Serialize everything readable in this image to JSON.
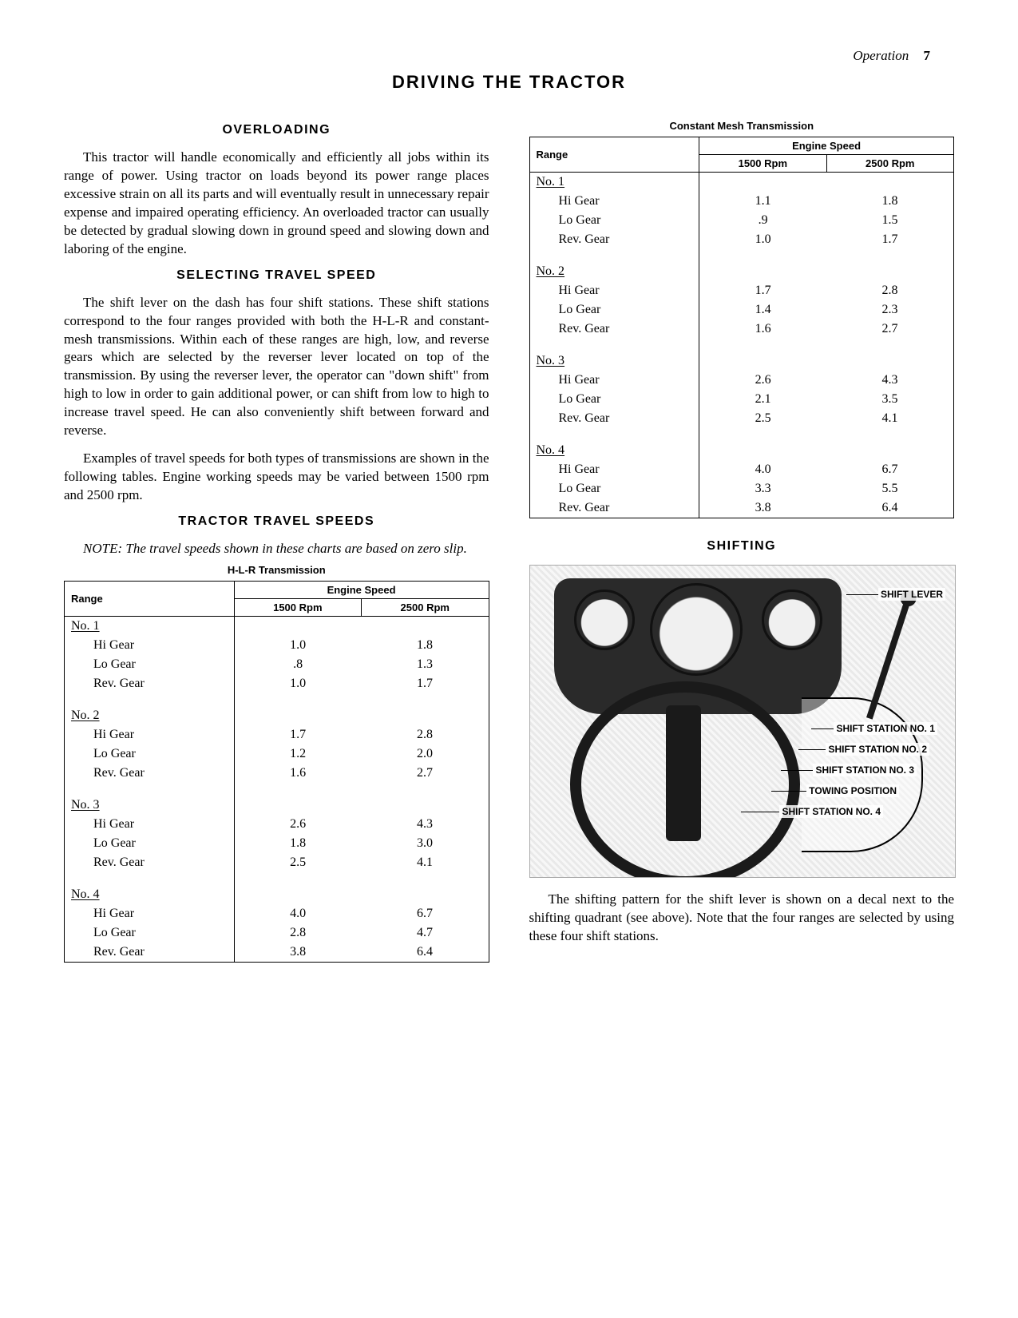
{
  "header": {
    "section": "Operation",
    "page_number": "7"
  },
  "title": "DRIVING THE TRACTOR",
  "left": {
    "overloading": {
      "heading": "OVERLOADING",
      "p1": "This tractor will handle economically and efficiently all jobs within its range of power. Using tractor on loads beyond its power range places excessive strain on all its parts and will eventually result in unnecessary repair expense and impaired operating efficiency. An overloaded tractor can usually be detected by gradual slowing down in ground speed and slowing down and laboring of the engine."
    },
    "selecting": {
      "heading": "SELECTING TRAVEL SPEED",
      "p1": "The shift lever on the dash has four shift stations. These shift stations correspond to the four ranges provided with both the H-L-R and constant-mesh transmissions. Within each of these ranges are high, low, and reverse gears which are selected by the reverser lever located on top of the transmission. By using the reverser lever, the operator can \"down shift\" from high to low in order to gain additional power, or can shift from low to high to increase travel speed. He can also conveniently shift between forward and reverse.",
      "p2": "Examples of travel speeds for both types of transmissions are shown in the following tables. Engine working speeds may be varied between 1500 rpm and 2500 rpm."
    },
    "speeds_heading": "TRACTOR TRAVEL SPEEDS",
    "note": "NOTE: The travel speeds shown in these charts are based on zero slip.",
    "table_hlr": {
      "caption": "H-L-R Transmission",
      "col_range": "Range",
      "col_engine": "Engine Speed",
      "col_1500": "1500 Rpm",
      "col_2500": "2500 Rpm",
      "ranges": [
        {
          "label": "No. 1",
          "rows": [
            {
              "gear": "Hi Gear",
              "v1500": "1.0",
              "v2500": "1.8"
            },
            {
              "gear": "Lo Gear",
              "v1500": ".8",
              "v2500": "1.3"
            },
            {
              "gear": "Rev. Gear",
              "v1500": "1.0",
              "v2500": "1.7"
            }
          ]
        },
        {
          "label": "No. 2",
          "rows": [
            {
              "gear": "Hi Gear",
              "v1500": "1.7",
              "v2500": "2.8"
            },
            {
              "gear": "Lo Gear",
              "v1500": "1.2",
              "v2500": "2.0"
            },
            {
              "gear": "Rev. Gear",
              "v1500": "1.6",
              "v2500": "2.7"
            }
          ]
        },
        {
          "label": "No. 3",
          "rows": [
            {
              "gear": "Hi Gear",
              "v1500": "2.6",
              "v2500": "4.3"
            },
            {
              "gear": "Lo Gear",
              "v1500": "1.8",
              "v2500": "3.0"
            },
            {
              "gear": "Rev. Gear",
              "v1500": "2.5",
              "v2500": "4.1"
            }
          ]
        },
        {
          "label": "No. 4",
          "rows": [
            {
              "gear": "Hi Gear",
              "v1500": "4.0",
              "v2500": "6.7"
            },
            {
              "gear": "Lo Gear",
              "v1500": "2.8",
              "v2500": "4.7"
            },
            {
              "gear": "Rev. Gear",
              "v1500": "3.8",
              "v2500": "6.4"
            }
          ]
        }
      ]
    }
  },
  "right": {
    "table_cm": {
      "caption": "Constant Mesh Transmission",
      "col_range": "Range",
      "col_engine": "Engine Speed",
      "col_1500": "1500 Rpm",
      "col_2500": "2500 Rpm",
      "ranges": [
        {
          "label": "No. 1",
          "rows": [
            {
              "gear": "Hi Gear",
              "v1500": "1.1",
              "v2500": "1.8"
            },
            {
              "gear": "Lo Gear",
              "v1500": ".9",
              "v2500": "1.5"
            },
            {
              "gear": "Rev. Gear",
              "v1500": "1.0",
              "v2500": "1.7"
            }
          ]
        },
        {
          "label": "No. 2",
          "rows": [
            {
              "gear": "Hi Gear",
              "v1500": "1.7",
              "v2500": "2.8"
            },
            {
              "gear": "Lo Gear",
              "v1500": "1.4",
              "v2500": "2.3"
            },
            {
              "gear": "Rev. Gear",
              "v1500": "1.6",
              "v2500": "2.7"
            }
          ]
        },
        {
          "label": "No. 3",
          "rows": [
            {
              "gear": "Hi Gear",
              "v1500": "2.6",
              "v2500": "4.3"
            },
            {
              "gear": "Lo Gear",
              "v1500": "2.1",
              "v2500": "3.5"
            },
            {
              "gear": "Rev. Gear",
              "v1500": "2.5",
              "v2500": "4.1"
            }
          ]
        },
        {
          "label": "No. 4",
          "rows": [
            {
              "gear": "Hi Gear",
              "v1500": "4.0",
              "v2500": "6.7"
            },
            {
              "gear": "Lo Gear",
              "v1500": "3.3",
              "v2500": "5.5"
            },
            {
              "gear": "Rev. Gear",
              "v1500": "3.8",
              "v2500": "6.4"
            }
          ]
        }
      ]
    },
    "shifting": {
      "heading": "SHIFTING",
      "callouts": {
        "lever": "SHIFT LEVER",
        "s1": "SHIFT STATION NO. 1",
        "s2": "SHIFT STATION NO. 2",
        "s3": "SHIFT STATION NO. 3",
        "tow": "TOWING POSITION",
        "s4": "SHIFT STATION NO. 4"
      },
      "p1": "The shifting pattern for the shift lever is shown on a decal next to the shifting quadrant (see above). Note that the four ranges are selected by using these four shift stations."
    }
  }
}
